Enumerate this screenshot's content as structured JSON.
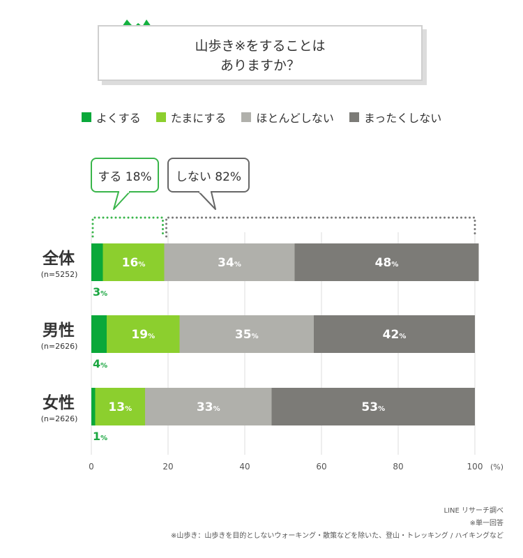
{
  "title": {
    "line1": "山歩き※をすることは",
    "line2": "ありますか？"
  },
  "bubbles": {
    "do": "する 18%",
    "dont": "しない 82%"
  },
  "colors": {
    "yoku": "#0aa83a",
    "tamani": "#8ccf2e",
    "hotondo": "#b0b0ab",
    "mattaku": "#7c7b77",
    "bubble_do": "#39b54a",
    "bubble_dont": "#666666"
  },
  "chart_data": {
    "type": "bar",
    "orientation": "horizontal",
    "stacked": true,
    "unit_label": "(%)",
    "xlim": [
      0,
      100
    ],
    "x_ticks": [
      0,
      20,
      40,
      60,
      80,
      100
    ],
    "grid": true,
    "legend_position": "top",
    "categories": [
      {
        "name": "全体",
        "n": "(n=5252)"
      },
      {
        "name": "男性",
        "n": "(n=2626)"
      },
      {
        "name": "女性",
        "n": "(n=2626)"
      }
    ],
    "series": [
      {
        "name": "よくする",
        "values": [
          3,
          4,
          1
        ]
      },
      {
        "name": "たまにする",
        "values": [
          16,
          19,
          13
        ]
      },
      {
        "name": "ほとんどしない",
        "values": [
          34,
          35,
          33
        ]
      },
      {
        "name": "まったくしない",
        "values": [
          48,
          42,
          53
        ]
      }
    ]
  },
  "footer": {
    "source": "LINE リサーチ調べ",
    "note1": "※単一回答",
    "note2": "※山歩き：山歩きを目的としないウォーキング・散策などを除いた、登山・トレッキング / ハイキングなど"
  }
}
